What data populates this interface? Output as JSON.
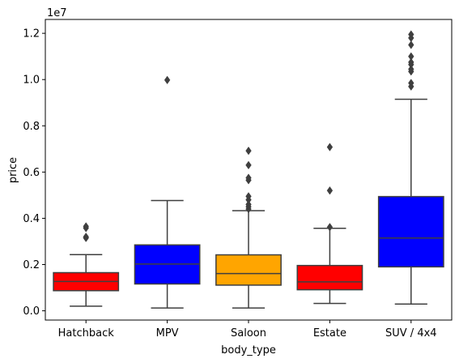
{
  "chart_data": {
    "type": "boxplot",
    "title": "",
    "xlabel": "body_type",
    "ylabel": "price",
    "y_scale_label": "1e7",
    "ylim": [
      -400000,
      12600000
    ],
    "yticks": [
      0,
      2000000,
      4000000,
      6000000,
      8000000,
      10000000,
      12000000
    ],
    "ytick_labels": [
      "0.0",
      "0.2",
      "0.4",
      "0.6",
      "0.8",
      "1.0",
      "1.2"
    ],
    "grid": false,
    "legend": "none",
    "categories": [
      "Hatchback",
      "MPV",
      "Saloon",
      "Estate",
      "SUV / 4x4"
    ],
    "boxes": [
      {
        "category": "Hatchback",
        "color": "#ff0000",
        "whisker_low": 200000,
        "q1": 870000,
        "median": 1270000,
        "q3": 1650000,
        "whisker_high": 2430000,
        "outliers": [
          3150000,
          3200000,
          3580000,
          3650000
        ]
      },
      {
        "category": "MPV",
        "color": "#0000ff",
        "whisker_low": 120000,
        "q1": 1160000,
        "median": 2020000,
        "q3": 2850000,
        "whisker_high": 4770000,
        "outliers": [
          9980000
        ]
      },
      {
        "category": "Saloon",
        "color": "#ffa500",
        "whisker_low": 120000,
        "q1": 1110000,
        "median": 1610000,
        "q3": 2420000,
        "whisker_high": 4330000,
        "outliers": [
          4400000,
          4500000,
          4600000,
          4800000,
          4950000,
          5650000,
          5750000,
          6300000,
          6920000
        ]
      },
      {
        "category": "Estate",
        "color": "#ff0000",
        "whisker_low": 320000,
        "q1": 910000,
        "median": 1250000,
        "q3": 1960000,
        "whisker_high": 3570000,
        "outliers": [
          3620000,
          5200000,
          7080000
        ]
      },
      {
        "category": "SUV / 4x4",
        "color": "#0000ff",
        "whisker_low": 290000,
        "q1": 1900000,
        "median": 3150000,
        "q3": 4940000,
        "whisker_high": 9150000,
        "outliers": [
          9700000,
          9850000,
          10350000,
          10450000,
          10650000,
          10750000,
          11000000,
          11500000,
          11800000,
          11950000
        ]
      }
    ]
  }
}
